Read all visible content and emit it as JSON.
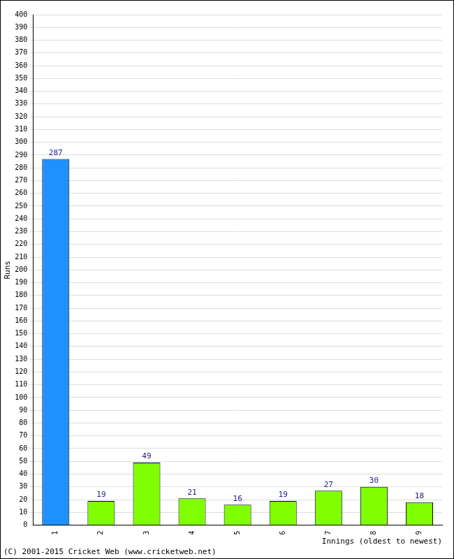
{
  "chart_data": {
    "type": "bar",
    "x_label": "Innings (oldest to newest)",
    "y_label": "Runs",
    "footer": "(C) 2001-2015 Cricket Web (www.cricketweb.net)",
    "categories": [
      "1",
      "2",
      "3",
      "4",
      "5",
      "6",
      "7",
      "8",
      "9"
    ],
    "values": [
      287,
      19,
      49,
      21,
      16,
      19,
      27,
      30,
      18
    ],
    "colors": [
      "#1e90ff",
      "#7fff00",
      "#7fff00",
      "#7fff00",
      "#7fff00",
      "#7fff00",
      "#7fff00",
      "#7fff00",
      "#7fff00"
    ],
    "ylim": [
      0,
      400
    ],
    "yticks": [
      0,
      10,
      20,
      30,
      40,
      50,
      60,
      70,
      80,
      90,
      100,
      110,
      120,
      130,
      140,
      150,
      160,
      170,
      180,
      190,
      200,
      210,
      220,
      230,
      240,
      250,
      260,
      270,
      280,
      290,
      300,
      310,
      320,
      330,
      340,
      350,
      360,
      370,
      380,
      390,
      400
    ],
    "grid": true,
    "data_labels": true
  }
}
